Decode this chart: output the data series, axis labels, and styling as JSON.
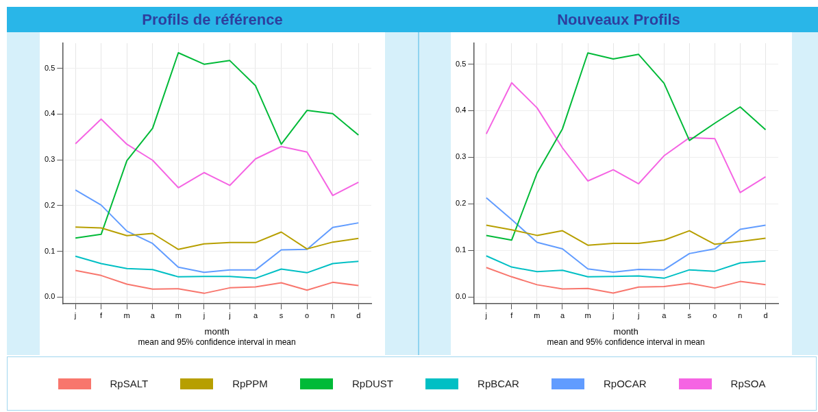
{
  "chart_data": [
    {
      "type": "line",
      "title": "Profils de référence",
      "xlabel": "month",
      "annotations": [
        "mean and 95% confidence interval in mean"
      ],
      "categories": [
        "j",
        "f",
        "m",
        "a",
        "m",
        "j",
        "j",
        "a",
        "s",
        "o",
        "n",
        "d"
      ],
      "ylim": [
        -0.015,
        0.555
      ],
      "yticks": [
        {
          "value": 0,
          "label": "0.0"
        },
        0.1,
        0.2,
        0.3,
        0.4,
        0.5
      ],
      "grid": true,
      "legend": "bottom",
      "series": [
        {
          "name": "RpSALT",
          "color": "#f8766d",
          "values": [
            0.058,
            0.047,
            0.028,
            0.017,
            0.018,
            0.008,
            0.02,
            0.022,
            0.031,
            0.015,
            0.032,
            0.025
          ]
        },
        {
          "name": "RpPPM",
          "color": "#b79f00",
          "values": [
            0.153,
            0.151,
            0.134,
            0.139,
            0.104,
            0.116,
            0.119,
            0.119,
            0.142,
            0.105,
            0.12,
            0.128
          ]
        },
        {
          "name": "RpDUST",
          "color": "#00ba38",
          "values": [
            0.129,
            0.137,
            0.298,
            0.369,
            0.534,
            0.509,
            0.517,
            0.462,
            0.334,
            0.408,
            0.401,
            0.354
          ]
        },
        {
          "name": "RpBCAR",
          "color": "#00bfc4",
          "values": [
            0.089,
            0.073,
            0.062,
            0.06,
            0.044,
            0.045,
            0.045,
            0.041,
            0.061,
            0.053,
            0.073,
            0.078
          ]
        },
        {
          "name": "RpOCAR",
          "color": "#619cff",
          "values": [
            0.234,
            0.201,
            0.144,
            0.117,
            0.065,
            0.054,
            0.059,
            0.059,
            0.103,
            0.104,
            0.152,
            0.162
          ]
        },
        {
          "name": "RpSOA",
          "color": "#f564e3",
          "values": [
            0.335,
            0.389,
            0.334,
            0.299,
            0.239,
            0.272,
            0.244,
            0.302,
            0.329,
            0.317,
            0.222,
            0.251
          ]
        }
      ]
    },
    {
      "type": "line",
      "title": "Nouveaux Profils",
      "xlabel": "month",
      "annotations": [
        "mean and 95% confidence interval in mean"
      ],
      "categories": [
        "j",
        "f",
        "m",
        "a",
        "m",
        "j",
        "j",
        "a",
        "s",
        "o",
        "n",
        "d"
      ],
      "ylim": [
        -0.015,
        0.545
      ],
      "yticks": [
        {
          "value": 0,
          "label": "0.0"
        },
        0.1,
        0.2,
        0.3,
        0.4,
        0.5
      ],
      "grid": true,
      "legend": "bottom",
      "series": [
        {
          "name": "RpSALT",
          "color": "#f8766d",
          "values": [
            0.063,
            0.043,
            0.026,
            0.017,
            0.018,
            0.008,
            0.021,
            0.022,
            0.029,
            0.019,
            0.033,
            0.026
          ]
        },
        {
          "name": "RpPPM",
          "color": "#b79f00",
          "values": [
            0.154,
            0.144,
            0.132,
            0.142,
            0.111,
            0.115,
            0.115,
            0.122,
            0.142,
            0.113,
            0.119,
            0.126
          ]
        },
        {
          "name": "RpDUST",
          "color": "#00ba38",
          "values": [
            0.132,
            0.122,
            0.266,
            0.361,
            0.524,
            0.511,
            0.521,
            0.459,
            0.336,
            0.373,
            0.408,
            0.359
          ]
        },
        {
          "name": "RpBCAR",
          "color": "#00bfc4",
          "values": [
            0.088,
            0.064,
            0.054,
            0.057,
            0.043,
            0.044,
            0.045,
            0.04,
            0.058,
            0.055,
            0.073,
            0.077
          ]
        },
        {
          "name": "RpOCAR",
          "color": "#619cff",
          "values": [
            0.213,
            0.166,
            0.117,
            0.103,
            0.06,
            0.053,
            0.059,
            0.058,
            0.093,
            0.103,
            0.145,
            0.154
          ]
        },
        {
          "name": "RpSOA",
          "color": "#f564e3",
          "values": [
            0.35,
            0.46,
            0.406,
            0.32,
            0.249,
            0.273,
            0.243,
            0.303,
            0.342,
            0.34,
            0.224,
            0.258
          ]
        }
      ]
    }
  ]
}
